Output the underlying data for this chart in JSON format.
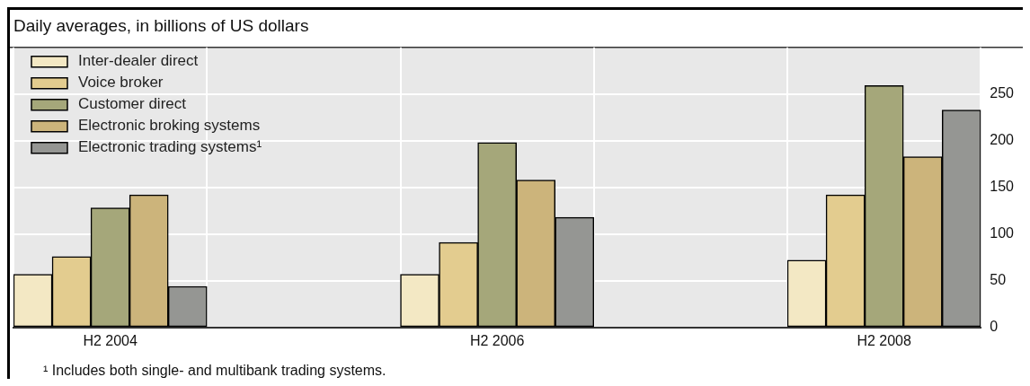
{
  "chart_data": {
    "type": "bar",
    "title": "Daily averages, in billions of US dollars",
    "categories": [
      "H2 2004",
      null,
      "H2 2006",
      null,
      "H2 2008"
    ],
    "series": [
      {
        "name": "Inter-dealer direct",
        "color": "#f3e8c4",
        "values": [
          57,
          null,
          57,
          null,
          72
        ]
      },
      {
        "name": "Voice broker",
        "color": "#e3cc8f",
        "values": [
          76,
          null,
          91,
          null,
          142
        ]
      },
      {
        "name": "Customer direct",
        "color": "#a5a77a",
        "values": [
          128,
          null,
          198,
          null,
          259
        ]
      },
      {
        "name": "Electronic broking systems",
        "color": "#ccb47b",
        "values": [
          142,
          null,
          158,
          null,
          183
        ]
      },
      {
        "name": "Electronic trading systems¹",
        "color": "#959693",
        "values": [
          44,
          null,
          118,
          null,
          233
        ]
      }
    ],
    "ylim": [
      0,
      300
    ],
    "yticks": [
      0,
      50,
      100,
      150,
      200,
      250
    ],
    "grid": true,
    "legend": "top left",
    "annotations": [
      "¹ Includes both single- and multibank trading systems."
    ]
  }
}
